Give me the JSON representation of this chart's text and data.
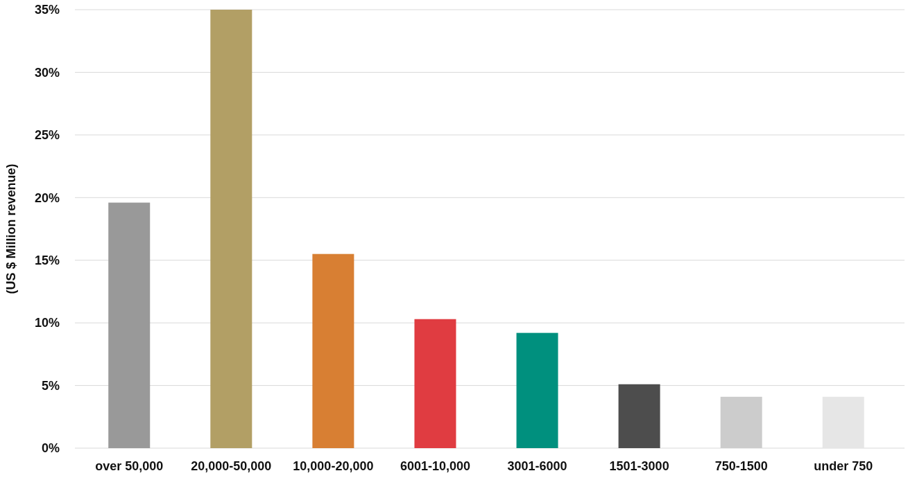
{
  "chart_data": {
    "type": "bar",
    "ylabel": "(US $ Million revenue)",
    "categories": [
      "over 50,000",
      "20,000-50,000",
      "10,000-20,000",
      "6001-10,000",
      "3001-6000",
      "1501-3000",
      "750-1500",
      "under 750"
    ],
    "values": [
      19.6,
      35,
      15.5,
      10.3,
      9.2,
      5.1,
      4.1,
      4.1
    ],
    "colors": [
      "#999999",
      "#b29f65",
      "#d87f33",
      "#e03c41",
      "#00907e",
      "#4d4d4d",
      "#cccccc",
      "#e6e6e6"
    ],
    "ylim": [
      0,
      35
    ],
    "yticks": [
      {
        "value": 0,
        "label": "0%"
      },
      {
        "value": 5,
        "label": "5%"
      },
      {
        "value": 10,
        "label": "10%"
      },
      {
        "value": 15,
        "label": "15%"
      },
      {
        "value": 20,
        "label": "20%"
      },
      {
        "value": 25,
        "label": "25%"
      },
      {
        "value": 30,
        "label": "30%"
      },
      {
        "value": 35,
        "label": "35%"
      }
    ],
    "grid": "y"
  }
}
